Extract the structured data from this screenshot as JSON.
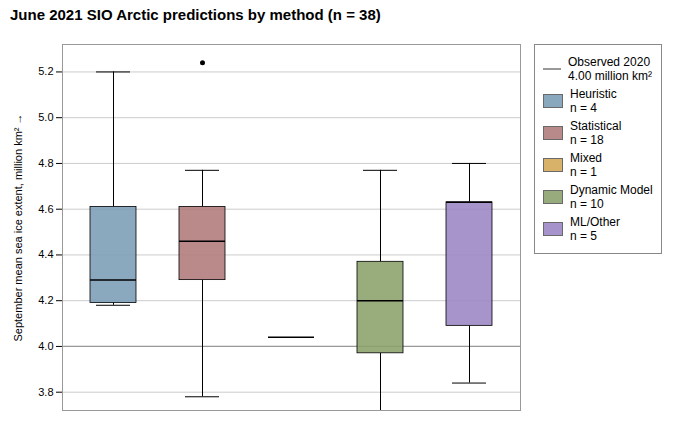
{
  "chart_data": {
    "type": "box",
    "title": "June 2021 SIO Arctic predictions by method (n = 38)",
    "ylabel": "September mean sea ice extent, million km²",
    "ylim": [
      3.72,
      5.32
    ],
    "yticks": [
      3.8,
      {
        "value": 4.0,
        "label": "4.0"
      },
      4.2,
      4.4,
      4.6,
      4.8,
      {
        "value": 5.0,
        "label": "5.0"
      },
      5.2
    ],
    "grid": true,
    "legend": "upper right",
    "tick_labels": "y",
    "observed": {
      "label": "Observed 2020",
      "sublabel": "4.00 million km²",
      "value": 4.0,
      "color": "#999999"
    },
    "boxes": [
      {
        "label": "Heuristic",
        "sublabel": "n = 4",
        "color": "#7a9db5",
        "whisker_low": 4.18,
        "q1": 4.19,
        "median": 4.29,
        "q3": 4.61,
        "whisker_high": 5.2
      },
      {
        "label": "Statistical",
        "sublabel": "n = 18",
        "color": "#b07a7a",
        "whisker_low": 3.78,
        "q1": 4.29,
        "median": 4.46,
        "q3": 4.61,
        "whisker_high": 4.77
      },
      {
        "label": "Mixed",
        "sublabel": "n = 1",
        "color": "#d4a855",
        "whisker_low": 4.04,
        "q1": 4.04,
        "median": 4.04,
        "q3": 4.04,
        "whisker_high": 4.04
      },
      {
        "label": "Dynamic Model",
        "sublabel": "n = 10",
        "color": "#8aa06a",
        "whisker_low": 3.72,
        "q1": 3.97,
        "median": 4.2,
        "q3": 4.37,
        "whisker_high": 4.77
      },
      {
        "label": "ML/Other",
        "sublabel": "n = 5",
        "color": "#9b85c4",
        "whisker_low": 3.84,
        "q1": 4.09,
        "median": 4.63,
        "q3": 4.63,
        "whisker_high": 4.8
      }
    ],
    "outliers": [
      {
        "box": "Statistical",
        "value": 5.24
      }
    ]
  }
}
